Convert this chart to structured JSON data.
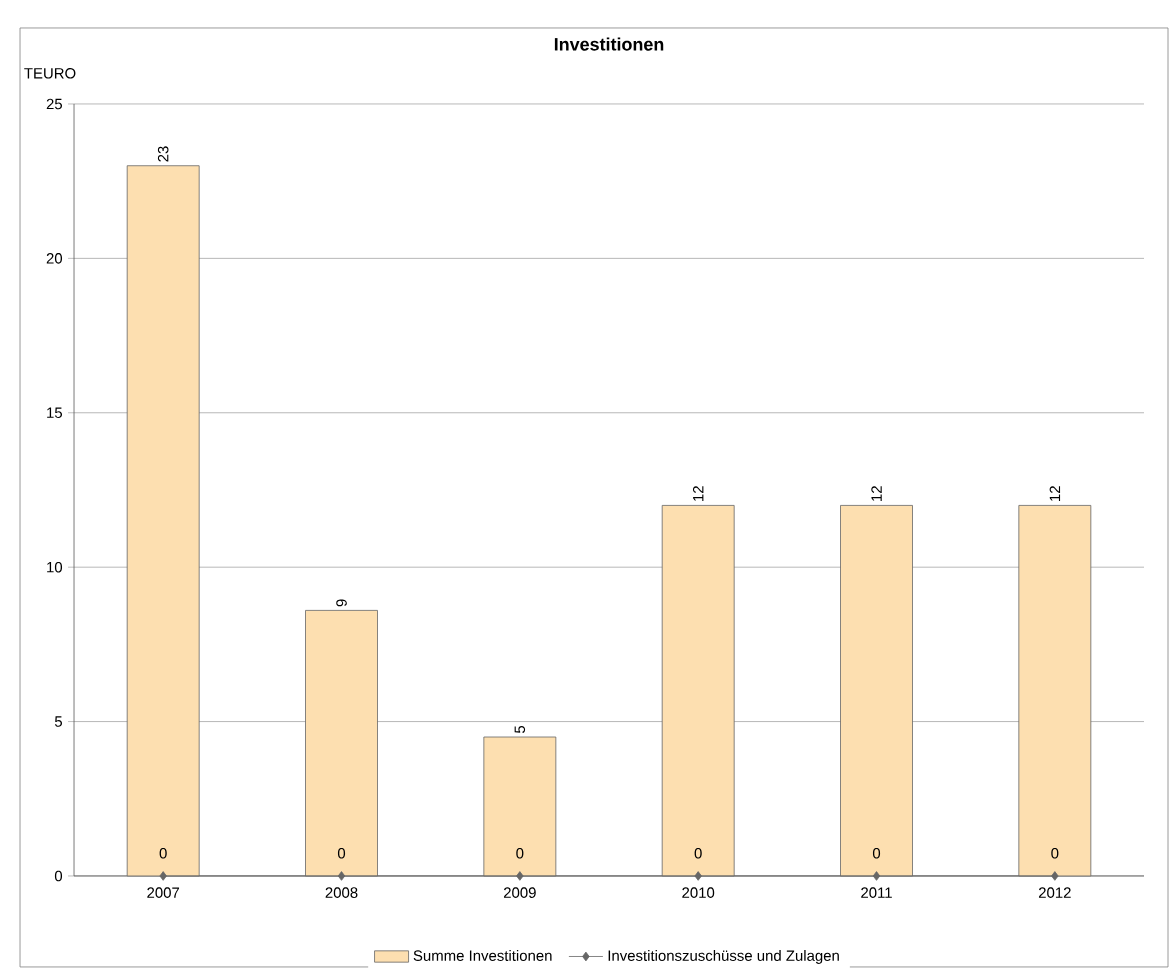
{
  "chart_data": {
    "type": "bar",
    "title": "Investitionen",
    "ylabel": "TEURO",
    "categories": [
      "2007",
      "2008",
      "2009",
      "2010",
      "2011",
      "2012"
    ],
    "series": [
      {
        "name": "Summe Investitionen",
        "color": "#fddfb0",
        "values": [
          23,
          8.6,
          4.5,
          12,
          12,
          12
        ],
        "value_labels": [
          "23",
          "9",
          "5",
          "12",
          "12",
          "12"
        ]
      },
      {
        "name": "Investitionszuschüsse und Zulagen",
        "type": "line",
        "color": "#666666",
        "marker": "diamond",
        "values": [
          0,
          0,
          0,
          0,
          0,
          0
        ],
        "value_labels": [
          "0",
          "0",
          "0",
          "0",
          "0",
          "0"
        ]
      }
    ],
    "ylim": [
      0,
      25
    ],
    "yticks": [
      0,
      5,
      10,
      15,
      20,
      25
    ],
    "grid": "y",
    "legend": "bottom"
  }
}
